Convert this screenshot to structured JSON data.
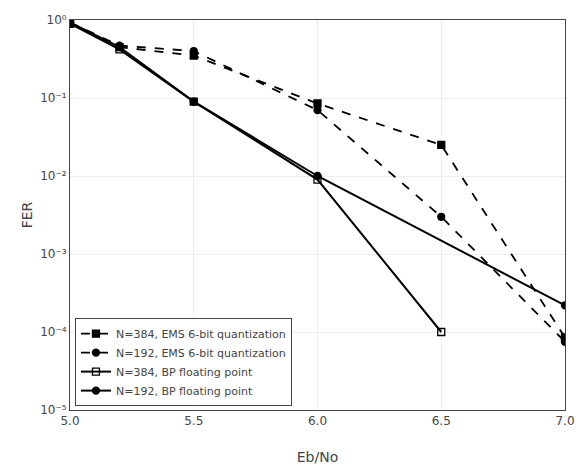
{
  "chart_data": {
    "type": "line",
    "title": "",
    "x_label": "Eb/No",
    "y_label": "FER",
    "log": "y",
    "xlim": [
      5,
      7
    ],
    "ylim": [
      1e-05,
      1
    ],
    "xticks": [
      {
        "value": 5,
        "label": "5.0"
      },
      5.5,
      {
        "value": 6,
        "label": "6.0"
      },
      6.5,
      {
        "value": 7,
        "label": "7.0"
      }
    ],
    "yticks": [
      {
        "value": 1e-05,
        "label": "10⁻⁵"
      },
      {
        "value": 0.0001,
        "label": "10⁻⁴"
      },
      {
        "value": 0.001,
        "label": "10⁻³"
      },
      {
        "value": 0.01,
        "label": "10⁻²"
      },
      {
        "value": 0.1,
        "label": "10⁻¹"
      },
      {
        "value": 1,
        "label": "10⁰"
      }
    ],
    "grid": true,
    "legend": "lower left",
    "series": [
      {
        "name": "N=384, EMS 6-bit quantization",
        "color": "#000000",
        "line_style": "dashed",
        "marker": "square",
        "x": [
          5.0,
          5.2,
          5.5,
          6.0,
          6.5,
          7.0
        ],
        "values": [
          0.9,
          0.45,
          0.35,
          0.085,
          0.025,
          8.5e-05
        ]
      },
      {
        "name": "N=192, EMS 6-bit quantization",
        "color": "#000000",
        "line_style": "dashed",
        "marker": "circle",
        "x": [
          5.0,
          5.2,
          5.5,
          6.0,
          6.5,
          7.0
        ],
        "values": [
          0.93,
          0.47,
          0.4,
          0.07,
          0.003,
          7.5e-05
        ]
      },
      {
        "name": "N=384, BP floating point",
        "color": "#000000",
        "line_style": "solid",
        "marker": "square-open",
        "x": [
          5.0,
          5.2,
          5.5,
          6.0,
          6.5
        ],
        "values": [
          0.9,
          0.42,
          0.09,
          0.009,
          0.0001
        ]
      },
      {
        "name": "N=192, BP floating point",
        "color": "#000000",
        "line_style": "solid",
        "marker": "circle",
        "x": [
          5.0,
          5.2,
          5.5,
          6.0,
          7.0
        ],
        "values": [
          0.93,
          0.45,
          0.09,
          0.01,
          0.00022
        ]
      }
    ]
  }
}
